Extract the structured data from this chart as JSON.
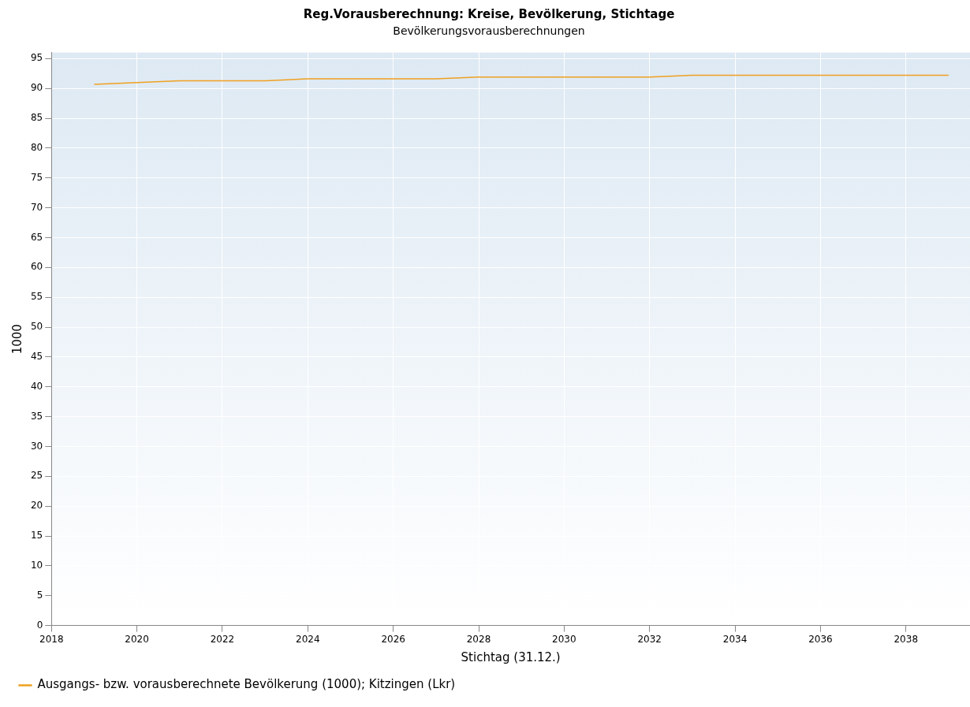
{
  "chart_data": {
    "type": "line",
    "title": "Reg.Vorausberechnung: Kreise, Bevölkerung, Stichtage",
    "subtitle": "Bevölkerungsvorausberechnungen",
    "xlabel": "Stichtag (31.12.)",
    "ylabel": "1000",
    "x": [
      2019,
      2020,
      2021,
      2022,
      2023,
      2024,
      2025,
      2026,
      2027,
      2028,
      2029,
      2030,
      2031,
      2032,
      2033,
      2034,
      2035,
      2036,
      2037,
      2038,
      2039
    ],
    "series": [
      {
        "name": "Ausgangs- bzw. vorausberechnete Bevölkerung (1000); Kitzingen (Lkr)",
        "color": "#f0a020",
        "values": [
          90.7,
          91.0,
          91.3,
          91.3,
          91.3,
          91.6,
          91.6,
          91.6,
          91.6,
          91.9,
          91.9,
          91.9,
          91.9,
          91.9,
          92.2,
          92.2,
          92.2,
          92.2,
          92.2,
          92.2,
          92.2
        ]
      }
    ],
    "xlim": [
      2018,
      2039.5
    ],
    "xticks": [
      2018,
      2020,
      2022,
      2024,
      2026,
      2028,
      2030,
      2032,
      2034,
      2036,
      2038
    ],
    "ylim": [
      0,
      96
    ],
    "yticks": [
      0,
      5,
      10,
      15,
      20,
      25,
      30,
      35,
      40,
      45,
      50,
      55,
      60,
      65,
      70,
      75,
      80,
      85,
      90,
      95
    ],
    "grid": true,
    "legend": "bottom left",
    "marker": "none",
    "line_style": "solid"
  }
}
